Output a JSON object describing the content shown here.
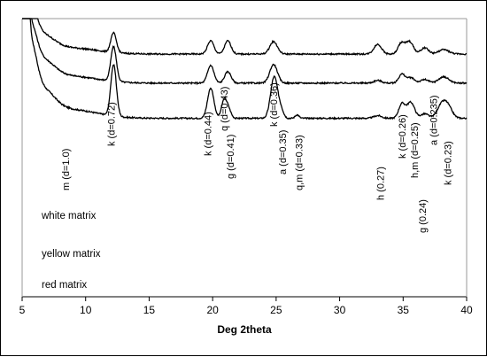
{
  "chart_data": {
    "type": "line",
    "title": "",
    "xlabel": "Deg 2theta",
    "ylabel": "",
    "xlim": [
      5,
      40
    ],
    "x_ticks": [
      5,
      10,
      15,
      20,
      25,
      30,
      35,
      40
    ],
    "y_ticks": [],
    "grid": false,
    "legend": "none",
    "line_color": "#000000",
    "series": [
      {
        "label": "white matrix",
        "baseline": 12.5,
        "peaks": [
          {
            "x": 5.0,
            "h": 230,
            "w": 0.1
          },
          {
            "x": 5.25,
            "h": 155,
            "w": 0.22
          },
          {
            "x": 5.7,
            "h": 62,
            "w": 0.45
          },
          {
            "x": 6.6,
            "h": 26,
            "w": 0.9
          },
          {
            "x": 8.6,
            "h": 10,
            "w": 2.2
          },
          {
            "x": 12.2,
            "h": 58,
            "w": 0.22
          },
          {
            "x": 19.85,
            "h": 34,
            "w": 0.25
          },
          {
            "x": 20.9,
            "h": 20,
            "w": 0.2
          },
          {
            "x": 21.25,
            "h": 10,
            "w": 0.2
          },
          {
            "x": 24.85,
            "h": 47,
            "w": 0.28
          },
          {
            "x": 25.4,
            "h": 8,
            "w": 0.2
          },
          {
            "x": 26.65,
            "h": 4,
            "w": 0.15
          },
          {
            "x": 33.0,
            "h": 3,
            "w": 0.3
          },
          {
            "x": 34.9,
            "h": 16,
            "w": 0.25
          },
          {
            "x": 35.6,
            "h": 18,
            "w": 0.3
          },
          {
            "x": 36.7,
            "h": 5,
            "w": 0.3
          },
          {
            "x": 38.0,
            "h": 13,
            "w": 0.35
          },
          {
            "x": 38.5,
            "h": 13,
            "w": 0.35
          }
        ]
      },
      {
        "label": "yellow matrix",
        "baseline": 7.2,
        "peaks": [
          {
            "x": 5.0,
            "h": 182,
            "w": 0.1
          },
          {
            "x": 5.25,
            "h": 120,
            "w": 0.22
          },
          {
            "x": 5.7,
            "h": 48,
            "w": 0.45
          },
          {
            "x": 6.6,
            "h": 21,
            "w": 0.9
          },
          {
            "x": 8.6,
            "h": 8,
            "w": 2.2
          },
          {
            "x": 12.2,
            "h": 39,
            "w": 0.22
          },
          {
            "x": 19.85,
            "h": 20,
            "w": 0.25
          },
          {
            "x": 21.2,
            "h": 13,
            "w": 0.25
          },
          {
            "x": 24.8,
            "h": 21,
            "w": 0.3
          },
          {
            "x": 33.0,
            "h": 3,
            "w": 0.3
          },
          {
            "x": 34.9,
            "h": 10,
            "w": 0.25
          },
          {
            "x": 35.6,
            "h": 6,
            "w": 0.3
          },
          {
            "x": 36.7,
            "h": 4,
            "w": 0.3
          },
          {
            "x": 38.2,
            "h": 7,
            "w": 0.4
          }
        ]
      },
      {
        "label": "red matrix",
        "baseline": 3.0,
        "peaks": [
          {
            "x": 5.0,
            "h": 146,
            "w": 0.1
          },
          {
            "x": 5.25,
            "h": 98,
            "w": 0.22
          },
          {
            "x": 5.7,
            "h": 40,
            "w": 0.45
          },
          {
            "x": 6.6,
            "h": 17,
            "w": 0.9
          },
          {
            "x": 8.6,
            "h": 7,
            "w": 2.2
          },
          {
            "x": 12.2,
            "h": 22,
            "w": 0.22
          },
          {
            "x": 19.85,
            "h": 15,
            "w": 0.25
          },
          {
            "x": 21.2,
            "h": 15,
            "w": 0.25
          },
          {
            "x": 24.8,
            "h": 14,
            "w": 0.3
          },
          {
            "x": 33.0,
            "h": 11,
            "w": 0.3
          },
          {
            "x": 34.85,
            "h": 12,
            "w": 0.25
          },
          {
            "x": 35.5,
            "h": 14,
            "w": 0.3
          },
          {
            "x": 36.7,
            "h": 7,
            "w": 0.3
          },
          {
            "x": 38.2,
            "h": 5,
            "w": 0.4
          }
        ]
      }
    ],
    "annotations": [
      {
        "text": "m (d=1.0)",
        "x": 8.4
      },
      {
        "text": "k (d=0.72)",
        "x": 12.0
      },
      {
        "text": "k (d=0.44)",
        "x": 19.6
      },
      {
        "text": "q (d=0.43)",
        "x": 20.9
      },
      {
        "text": "g (d=0.41)",
        "x": 21.4
      },
      {
        "text": "k (d=0.36)",
        "x": 24.8
      },
      {
        "text": "a (d=0.35)",
        "x": 25.5
      },
      {
        "text": "q,m (d=0.33)",
        "x": 26.8
      },
      {
        "text": "h (0.27)",
        "x": 33.2
      },
      {
        "text": "k (d=0.26)",
        "x": 34.9
      },
      {
        "text": "h,m (d=0.25)",
        "x": 35.9
      },
      {
        "text": "g (0.24)",
        "x": 36.5
      },
      {
        "text": "a (d=0.235)",
        "x": 37.4
      },
      {
        "text": "k (d=0.23)",
        "x": 38.5
      }
    ]
  }
}
